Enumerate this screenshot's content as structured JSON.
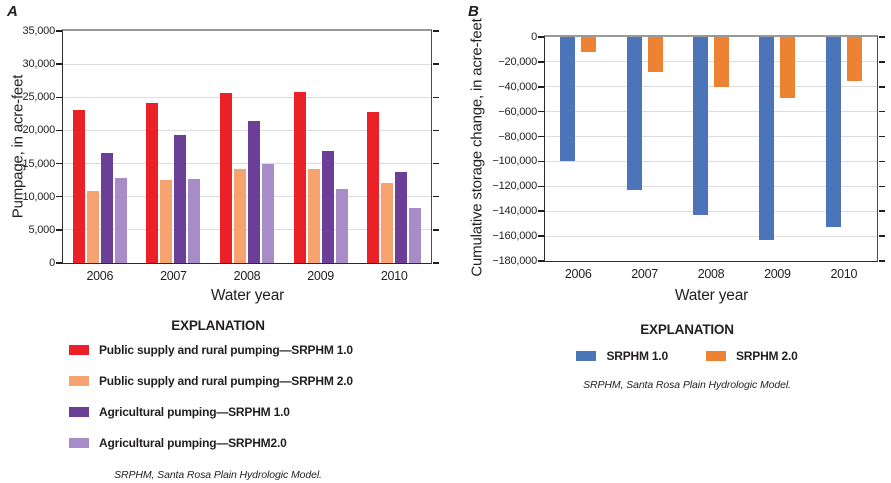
{
  "figure": {
    "panelA": {
      "label": "A",
      "legend_title": "EXPLANATION",
      "note": "SRPHM, Santa Rosa Plain Hydrologic Model."
    },
    "panelB": {
      "label": "B",
      "legend_title": "EXPLANATION",
      "note": "SRPHM, Santa Rosa Plain Hydrologic Model."
    }
  },
  "colors": {
    "public_pumping_srphm1": "#EC2127",
    "public_pumping_srphm2": "#F6A36F",
    "ag_pumping_srphm1": "#6B3E98",
    "ag_pumping_srphm2": "#A78CC8",
    "storage_srphm1": "#4C74B9",
    "storage_srphm2": "#EE8233",
    "gridline": "#DDDDDE",
    "axis_text": "#231F20"
  },
  "chart_data": [
    {
      "id": "A",
      "type": "bar",
      "panel_label": "A",
      "categories": [
        "2006",
        "2007",
        "2008",
        "2009",
        "2010"
      ],
      "series": [
        {
          "name": "Public supply and rural pumping—SRPHM 1.0",
          "color": "#EC2127",
          "values": [
            23100,
            24200,
            25700,
            25800,
            22800
          ]
        },
        {
          "name": "Public supply and rural pumping—SRPHM 2.0",
          "color": "#F6A36F",
          "values": [
            10900,
            12500,
            14200,
            14200,
            12000
          ]
        },
        {
          "name": "Agricultural pumping—SRPHM 1.0",
          "color": "#6B3E98",
          "values": [
            16600,
            19300,
            21400,
            16900,
            13700
          ]
        },
        {
          "name": "Agricultural pumping—SRPHM2.0",
          "color": "#A78CC8",
          "values": [
            12800,
            12600,
            15000,
            11200,
            8300
          ]
        }
      ],
      "xlabel": "Water year",
      "ylabel": "Pumpage, in acre-feet",
      "ylim": [
        0,
        35000
      ],
      "ytick_step": 5000,
      "grid": true,
      "legend_position": "below-vertical"
    },
    {
      "id": "B",
      "type": "bar",
      "panel_label": "B",
      "categories": [
        "2006",
        "2007",
        "2008",
        "2009",
        "2010"
      ],
      "series": [
        {
          "name": "SRPHM 1.0",
          "color": "#4C74B9",
          "values": [
            -100000,
            -123000,
            -143000,
            -163000,
            -153000
          ]
        },
        {
          "name": "SRPHM 2.0",
          "color": "#EE8233",
          "values": [
            -12000,
            -28000,
            -40000,
            -49000,
            -35000
          ]
        }
      ],
      "xlabel": "Water year",
      "ylabel": "Cumulative storage change, in acre-feet",
      "ylim": [
        -180000,
        0
      ],
      "ytick_step": 20000,
      "grid": true,
      "legend_position": "below-horizontal"
    }
  ]
}
